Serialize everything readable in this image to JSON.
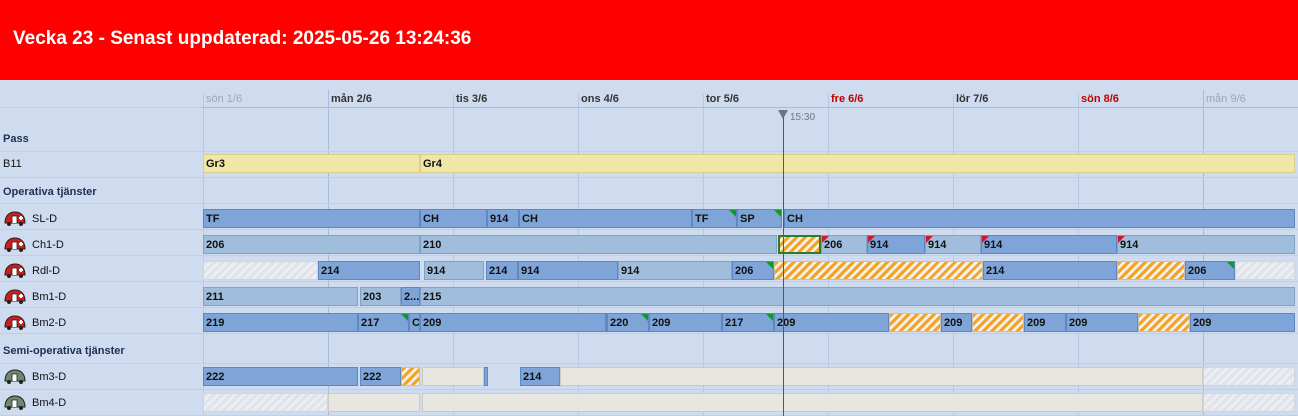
{
  "header": {
    "title": "Vecka 23 - Senast uppdaterad: 2025-05-26 13:24:36",
    "background": "#ff0000"
  },
  "timeline": {
    "days": [
      {
        "label": "sön 1/6",
        "kind": "dim"
      },
      {
        "label": "mån 2/6",
        "kind": "normal"
      },
      {
        "label": "tis 3/6",
        "kind": "normal"
      },
      {
        "label": "ons 4/6",
        "kind": "normal"
      },
      {
        "label": "tor 5/6",
        "kind": "normal"
      },
      {
        "label": "fre 6/6",
        "kind": "weekend"
      },
      {
        "label": "lör 7/6",
        "kind": "normal"
      },
      {
        "label": "sön 8/6",
        "kind": "weekend"
      },
      {
        "label": "mån 9/6",
        "kind": "dim"
      }
    ],
    "now_label": "15:30"
  },
  "sections": {
    "pass": "Pass",
    "operative": "Operativa tjänster",
    "semi": "Semi-operativa tjänster"
  },
  "rows": [
    {
      "label": "B11",
      "icon": "none",
      "bars": [
        {
          "label": "Gr3",
          "style": "pass"
        },
        {
          "label": "Gr4",
          "style": "pass"
        }
      ]
    },
    {
      "label": "SL-D",
      "icon": "ambulance-red-icon",
      "bars": [
        {
          "label": "TF",
          "style": "mid"
        },
        {
          "label": "CH",
          "style": "mid"
        },
        {
          "label": "914",
          "style": "mid"
        },
        {
          "label": "CH",
          "style": "mid"
        },
        {
          "label": "TF",
          "style": "mid"
        },
        {
          "label": "SP",
          "style": "mid"
        },
        {
          "label": "CH",
          "style": "mid"
        }
      ]
    },
    {
      "label": "Ch1-D",
      "icon": "ambulance-red-icon",
      "bars": [
        {
          "label": "206",
          "style": "light"
        },
        {
          "label": "210",
          "style": "light"
        },
        {
          "label": "",
          "style": "hatch"
        },
        {
          "label": "206",
          "style": "light"
        },
        {
          "label": "914",
          "style": "mid"
        },
        {
          "label": "914",
          "style": "light"
        },
        {
          "label": "914",
          "style": "mid"
        },
        {
          "label": "914",
          "style": "light"
        }
      ]
    },
    {
      "label": "Rdl-D",
      "icon": "ambulance-red-icon",
      "bars": [
        {
          "label": "",
          "style": "empty"
        },
        {
          "label": "214",
          "style": "mid"
        },
        {
          "label": "914",
          "style": "light"
        },
        {
          "label": "214",
          "style": "mid"
        },
        {
          "label": "914",
          "style": "mid"
        },
        {
          "label": "914",
          "style": "light"
        },
        {
          "label": "206",
          "style": "mid"
        },
        {
          "label": "",
          "style": "hatch"
        },
        {
          "label": "214",
          "style": "mid"
        },
        {
          "label": "",
          "style": "hatch"
        },
        {
          "label": "206",
          "style": "mid"
        },
        {
          "label": "",
          "style": "empty"
        }
      ]
    },
    {
      "label": "Bm1-D",
      "icon": "ambulance-red-icon",
      "bars": [
        {
          "label": "211",
          "style": "light"
        },
        {
          "label": "203",
          "style": "light"
        },
        {
          "label": "2...",
          "style": "mid"
        },
        {
          "label": "215",
          "style": "light"
        }
      ]
    },
    {
      "label": "Bm2-D",
      "icon": "ambulance-red-icon",
      "bars": [
        {
          "label": "219",
          "style": "mid"
        },
        {
          "label": "217",
          "style": "mid"
        },
        {
          "label": "C",
          "style": "mid"
        },
        {
          "label": "209",
          "style": "mid"
        },
        {
          "label": "2",
          "style": "mid"
        },
        {
          "label": "220",
          "style": "mid"
        },
        {
          "label": "209",
          "style": "mid"
        },
        {
          "label": "217",
          "style": "mid"
        },
        {
          "label": "209",
          "style": "mid"
        },
        {
          "label": "",
          "style": "hatch"
        },
        {
          "label": "209",
          "style": "mid"
        },
        {
          "label": "",
          "style": "hatch"
        },
        {
          "label": "209",
          "style": "mid"
        },
        {
          "label": "209",
          "style": "mid"
        },
        {
          "label": "",
          "style": "hatch"
        },
        {
          "label": "209",
          "style": "mid"
        }
      ]
    },
    {
      "label": "Bm3-D",
      "icon": "ambulance-grey-icon",
      "bars": [
        {
          "label": "222",
          "style": "mid"
        },
        {
          "label": "222",
          "style": "mid"
        },
        {
          "label": "",
          "style": "hatch"
        },
        {
          "label": "",
          "style": "grey"
        },
        {
          "label": "",
          "style": "mid"
        },
        {
          "label": "214",
          "style": "mid"
        },
        {
          "label": "",
          "style": "grey"
        },
        {
          "label": "",
          "style": "empty"
        }
      ]
    },
    {
      "label": "Bm4-D",
      "icon": "ambulance-grey-icon",
      "bars": [
        {
          "label": "",
          "style": "empty"
        },
        {
          "label": "",
          "style": "grey"
        },
        {
          "label": "",
          "style": "grey"
        },
        {
          "label": "",
          "style": "empty"
        }
      ]
    }
  ]
}
